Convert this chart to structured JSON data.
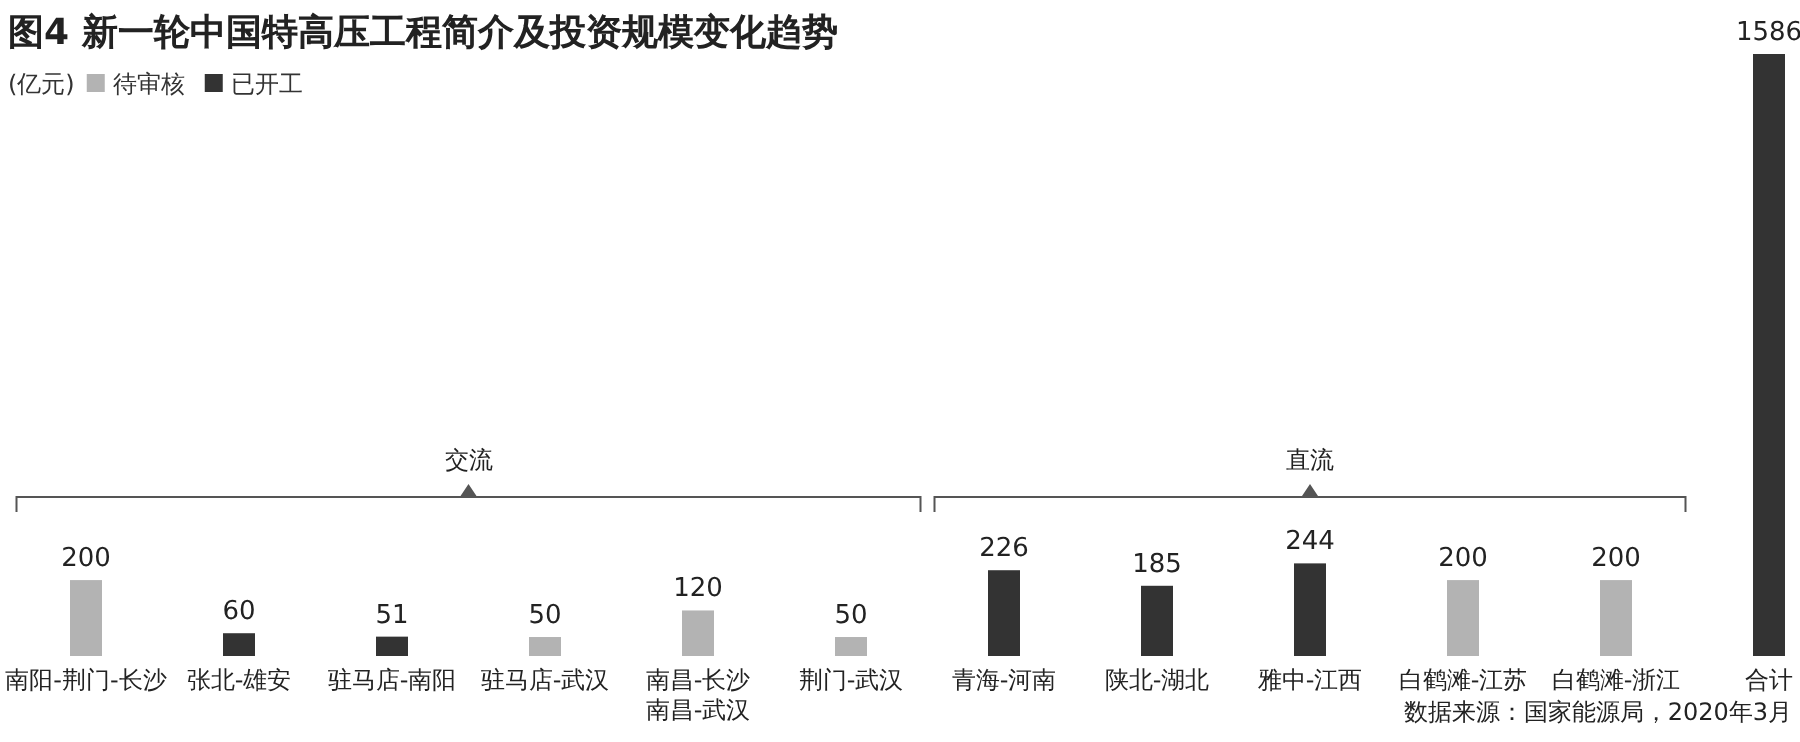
{
  "chart_data": {
    "type": "bar",
    "title": "图4  新一轮中国特高压工程简介及投资规模变化趋势",
    "ylabel": "(亿元)",
    "categories": [
      "南阳-荆门-长沙",
      "张北-雄安",
      "驻马店-南阳",
      "驻马店-武汉",
      "南昌-长沙南昌-武汉",
      "荆门-武汉",
      "青海-河南",
      "陕北-湖北",
      "雅中-江西",
      "白鹤滩-江苏",
      "白鹤滩-浙江",
      "合计"
    ],
    "series": [
      {
        "name": "待审核",
        "color": "#b3b3b3",
        "values": [
          200,
          null,
          null,
          50,
          120,
          50,
          null,
          null,
          null,
          200,
          200,
          null
        ]
      },
      {
        "name": "已开工",
        "color": "#333333",
        "values": [
          null,
          60,
          51,
          null,
          null,
          null,
          226,
          185,
          244,
          null,
          null,
          1586
        ]
      }
    ],
    "data_labels": true,
    "legend": "top left",
    "annotations": [
      "交流",
      "直流",
      "数据来源：国家能源局，2020年3月"
    ]
  }
}
